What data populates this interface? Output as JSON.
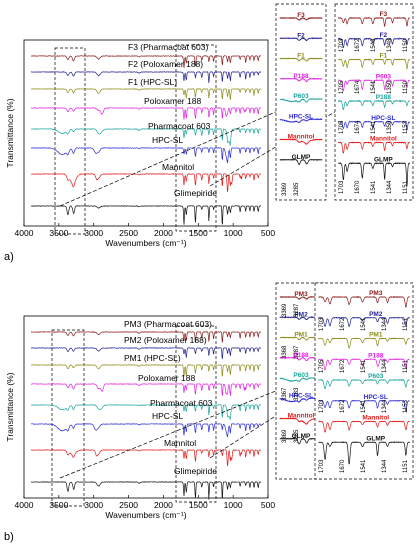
{
  "chart_data": [
    {
      "type": "line",
      "panel_label": "a)",
      "xlabel": "Wavenumbers (cm⁻¹)",
      "ylabel": "Transmittance (%)",
      "xlim": [
        4000,
        500
      ],
      "x_ticks": [
        4000,
        3500,
        3000,
        2500,
        2000,
        1500,
        1000,
        500
      ],
      "series": [
        {
          "name": "F3 (Pharmacoat 603)",
          "color": "#8b1a1a"
        },
        {
          "name": "F2 (Poloxamer 188)",
          "color": "#1f1f8f"
        },
        {
          "name": "F1 (HPC-SL)",
          "color": "#8c8c1a"
        },
        {
          "name": "Poloxamer 188",
          "color": "#e21fe2"
        },
        {
          "name": "Pharmacoat 603",
          "color": "#1aa39a"
        },
        {
          "name": "HPC-SL",
          "color": "#2a2ad9"
        },
        {
          "name": "Mannitol",
          "color": "#e51a1a"
        },
        {
          "name": "Glimepiride",
          "color": "#111111"
        }
      ],
      "inset_nh": {
        "labels": [
          "F3",
          "F2",
          "F1",
          "P188",
          "P603",
          "HPC-SL",
          "Mannitol",
          "GLMP"
        ],
        "peak_labels": [
          "3369",
          "3285"
        ]
      },
      "inset_fingerprint": {
        "labels": [
          "F3",
          "F2",
          "F1",
          "P603",
          "P188",
          "HPC-SL",
          "Mannitol",
          "GLMP"
        ],
        "peak_rows": [
          [
            "1703",
            "1672",
            "1543",
            "1348",
            "1150"
          ],
          [
            "1705",
            "1674",
            "1541",
            "1350",
            "1150"
          ],
          [
            "1705",
            "1674",
            "1541",
            "1350",
            "1153"
          ],
          [
            "1703",
            "1670",
            "1541",
            "1344",
            "1151"
          ]
        ]
      }
    },
    {
      "type": "line",
      "panel_label": "b)",
      "xlabel": "Wavenumbers (cm⁻¹)",
      "ylabel": "Transmittance (%)",
      "xlim": [
        4000,
        500
      ],
      "x_ticks": [
        4000,
        3500,
        3000,
        2500,
        2000,
        1500,
        1000,
        500
      ],
      "series": [
        {
          "name": "PM3 (Pharmacoat 603)",
          "color": "#8b1a1a"
        },
        {
          "name": "PM2 (Poloxamer 188)",
          "color": "#1f1f8f"
        },
        {
          "name": "PM1 (HPC-SL)",
          "color": "#8c8c1a"
        },
        {
          "name": "Poloxamer 188",
          "color": "#e21fe2"
        },
        {
          "name": "Pharmacoat 603",
          "color": "#1aa39a"
        },
        {
          "name": "HPC-SL",
          "color": "#2a2ad9"
        },
        {
          "name": "Mannitol",
          "color": "#e51a1a"
        },
        {
          "name": "Glimepiride",
          "color": "#111111"
        }
      ],
      "inset_nh": {
        "labels": [
          "PM3",
          "PM2",
          "PM1",
          "P188",
          "P603",
          "HPC-SL",
          "Mannitol",
          "GLMP"
        ],
        "peak_labels": [
          [
            "3369",
            "3287"
          ],
          [
            "3368",
            "3287"
          ],
          [
            "3367",
            "3283"
          ],
          [
            "3369",
            "3285"
          ]
        ]
      },
      "inset_fingerprint": {
        "labels": [
          "PM3",
          "PM2",
          "PM1",
          "P188",
          "P603",
          "HPC-SL",
          "Mannitol",
          "GLMP"
        ],
        "peak_rows": [
          [
            "1703",
            "1672",
            "1541",
            "1344",
            "1151"
          ],
          [
            "1705",
            "1672",
            "1541",
            "1344",
            "1151"
          ],
          [
            "1703",
            "1672",
            "1541",
            "1344",
            "1153"
          ],
          [
            "1703",
            "1670",
            "1541",
            "1344",
            "1151"
          ]
        ]
      }
    }
  ]
}
